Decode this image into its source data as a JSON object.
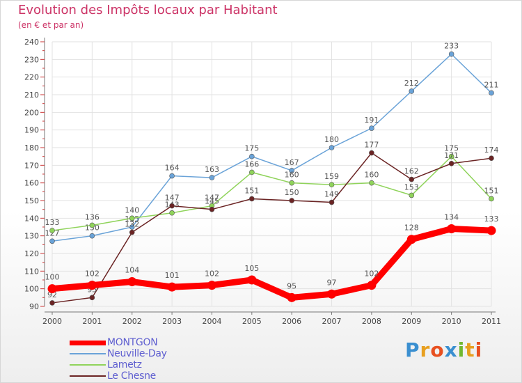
{
  "title": "Evolution des Impôts locaux par Habitant",
  "subtitle": "(en € et par an)",
  "brand": {
    "letters": [
      "P",
      "r",
      "o",
      "x",
      "i",
      "t",
      "i"
    ],
    "colors": [
      "#3a8fd0",
      "#e8a020",
      "#e85020",
      "#3a8fd0",
      "#70b830",
      "#e8a020",
      "#e85020"
    ]
  },
  "chart_data": {
    "type": "line",
    "title": "Evolution des Impôts locaux par Habitant",
    "subtitle": "(en € et par an)",
    "xlabel": "",
    "ylabel": "",
    "categories": [
      "2000",
      "2001",
      "2002",
      "2003",
      "2004",
      "2005",
      "2006",
      "2007",
      "2008",
      "2009",
      "2010",
      "2011"
    ],
    "ylim": [
      90,
      240
    ],
    "yticks": [
      "90",
      "100",
      "110",
      "120",
      "130",
      "140",
      "150",
      "160",
      "170",
      "180",
      "190",
      "200",
      "210",
      "220",
      "230",
      "240"
    ],
    "grid": true,
    "legend_position": "bottom-left",
    "series": [
      {
        "name": "MONTGON",
        "color": "#ff0000",
        "values": [
          100,
          102,
          104,
          101,
          102,
          105,
          95,
          97,
          102,
          128,
          134,
          133
        ],
        "labels": [
          "100",
          "102",
          "104",
          "101",
          "102",
          "105",
          "95",
          "97",
          "102",
          "128",
          "134",
          "133"
        ]
      },
      {
        "name": "Neuville-Day",
        "color": "#6aa3d8",
        "values": [
          127,
          130,
          135,
          164,
          163,
          175,
          167,
          180,
          191,
          212,
          233,
          211
        ],
        "labels": [
          "127",
          "130",
          "135",
          "164",
          "163",
          "175",
          "167",
          "180",
          "191",
          "212",
          "233",
          "211"
        ]
      },
      {
        "name": "Lametz",
        "color": "#8fd35a",
        "values": [
          133,
          136,
          140,
          143,
          147,
          166,
          160,
          159,
          160,
          153,
          175,
          151
        ],
        "labels": [
          "133",
          "136",
          "140",
          "143",
          "147",
          "166",
          "160",
          "159",
          "160",
          "153",
          "175",
          "151"
        ]
      },
      {
        "name": "Le Chesne",
        "color": "#6b2424",
        "values": [
          92,
          95,
          132,
          147,
          145,
          151,
          150,
          149,
          177,
          162,
          171,
          174
        ],
        "labels": [
          "92",
          "95",
          "132",
          "147",
          "145",
          "151",
          "150",
          "149",
          "177",
          "162",
          "171",
          "174"
        ]
      }
    ]
  }
}
